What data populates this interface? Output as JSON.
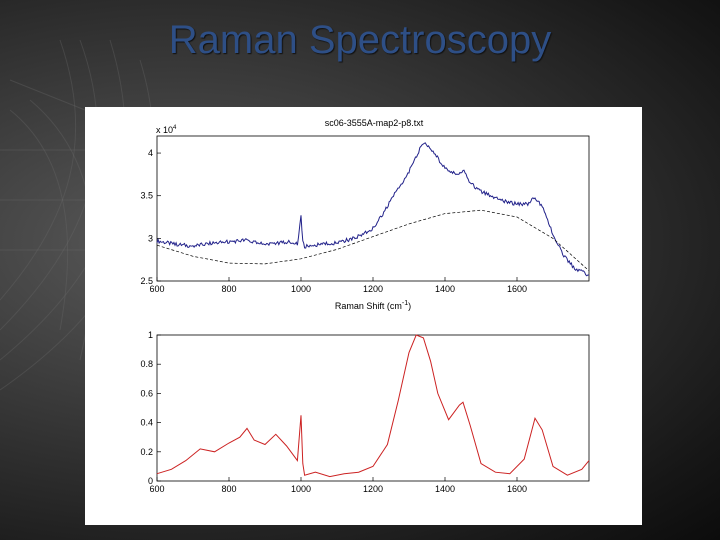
{
  "slide": {
    "title": "Raman Spectroscopy"
  },
  "colors": {
    "background": "#2a2a2a",
    "title": "#2e4f86",
    "top_series": "#22228a",
    "baseline": "#000000",
    "bottom_series": "#cc2222"
  },
  "chart_data": [
    {
      "type": "line",
      "title": "sc06-3555A-map2-p8.txt",
      "xlabel": "Raman Shift (cm",
      "xlabel_sup": "-1",
      "xlabel_suffix": ")",
      "ylabel": "",
      "y_multiplier_base": "x 10",
      "y_multiplier_exp": "4",
      "xlim": [
        600,
        1800
      ],
      "ylim": [
        2.5,
        4.2
      ],
      "x_ticks": [
        "600",
        "800",
        "1000",
        "1200",
        "1400",
        "1600"
      ],
      "y_ticks": [
        "2.5",
        "3",
        "3.5",
        "4"
      ],
      "series": [
        {
          "style": "noisy-line",
          "x": [
            600,
            650,
            700,
            750,
            800,
            850,
            880,
            920,
            960,
            990,
            1000,
            1005,
            1010,
            1050,
            1100,
            1150,
            1200,
            1230,
            1260,
            1300,
            1330,
            1345,
            1370,
            1400,
            1430,
            1450,
            1470,
            1500,
            1550,
            1600,
            1630,
            1650,
            1670,
            1700,
            1730,
            1760,
            1800
          ],
          "y": [
            2.97,
            2.93,
            2.91,
            2.94,
            2.96,
            2.98,
            2.94,
            2.93,
            2.96,
            2.93,
            3.25,
            2.97,
            2.9,
            2.93,
            2.95,
            3.0,
            3.12,
            3.3,
            3.52,
            3.78,
            4.05,
            4.12,
            4.0,
            3.82,
            3.75,
            3.8,
            3.65,
            3.55,
            3.45,
            3.4,
            3.4,
            3.48,
            3.38,
            3.05,
            2.8,
            2.65,
            2.57
          ]
        },
        {
          "style": "dashed",
          "x": [
            600,
            700,
            800,
            900,
            1000,
            1100,
            1200,
            1300,
            1400,
            1500,
            1600,
            1700,
            1800
          ],
          "y": [
            2.92,
            2.79,
            2.71,
            2.7,
            2.76,
            2.87,
            3.02,
            3.17,
            3.29,
            3.33,
            3.25,
            3.0,
            2.62
          ]
        }
      ]
    },
    {
      "type": "line",
      "title": "",
      "xlabel": "",
      "ylabel": "",
      "xlim": [
        600,
        1800
      ],
      "ylim": [
        0,
        1
      ],
      "x_ticks": [
        "600",
        "800",
        "1000",
        "1200",
        "1400",
        "1600"
      ],
      "y_ticks": [
        "0",
        "0.2",
        "0.4",
        "0.6",
        "0.8",
        "1"
      ],
      "series": [
        {
          "style": "line",
          "x": [
            600,
            640,
            680,
            720,
            760,
            800,
            830,
            850,
            870,
            900,
            930,
            960,
            990,
            1000,
            1005,
            1010,
            1040,
            1080,
            1120,
            1160,
            1200,
            1240,
            1270,
            1300,
            1320,
            1340,
            1360,
            1380,
            1410,
            1440,
            1450,
            1470,
            1500,
            1540,
            1580,
            1620,
            1650,
            1670,
            1700,
            1740,
            1780,
            1800
          ],
          "y": [
            0.05,
            0.08,
            0.14,
            0.22,
            0.2,
            0.26,
            0.3,
            0.36,
            0.28,
            0.25,
            0.32,
            0.24,
            0.14,
            0.45,
            0.12,
            0.04,
            0.06,
            0.03,
            0.05,
            0.06,
            0.1,
            0.25,
            0.55,
            0.88,
            1.0,
            0.98,
            0.82,
            0.6,
            0.42,
            0.52,
            0.54,
            0.38,
            0.12,
            0.06,
            0.05,
            0.15,
            0.43,
            0.35,
            0.1,
            0.04,
            0.08,
            0.14
          ]
        }
      ]
    }
  ]
}
